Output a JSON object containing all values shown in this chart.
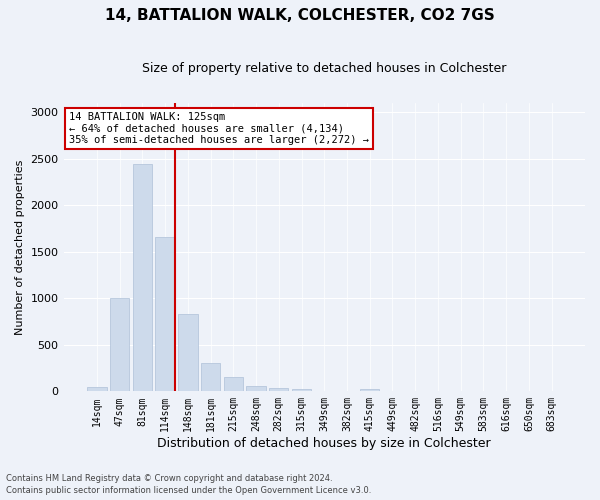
{
  "title1": "14, BATTALION WALK, COLCHESTER, CO2 7GS",
  "title2": "Size of property relative to detached houses in Colchester",
  "xlabel": "Distribution of detached houses by size in Colchester",
  "ylabel": "Number of detached properties",
  "footer1": "Contains HM Land Registry data © Crown copyright and database right 2024.",
  "footer2": "Contains public sector information licensed under the Open Government Licence v3.0.",
  "categories": [
    "14sqm",
    "47sqm",
    "81sqm",
    "114sqm",
    "148sqm",
    "181sqm",
    "215sqm",
    "248sqm",
    "282sqm",
    "315sqm",
    "349sqm",
    "382sqm",
    "415sqm",
    "449sqm",
    "482sqm",
    "516sqm",
    "549sqm",
    "583sqm",
    "616sqm",
    "650sqm",
    "683sqm"
  ],
  "values": [
    50,
    1000,
    2450,
    1660,
    830,
    300,
    150,
    55,
    40,
    30,
    0,
    0,
    25,
    0,
    0,
    0,
    0,
    0,
    0,
    0,
    0
  ],
  "bar_color": "#cddaeb",
  "bar_edge_color": "#aec0d8",
  "highlight_index": 3,
  "highlight_color": "#cc0000",
  "ylim": [
    0,
    3100
  ],
  "yticks": [
    0,
    500,
    1000,
    1500,
    2000,
    2500,
    3000
  ],
  "annotation_text": "14 BATTALION WALK: 125sqm\n← 64% of detached houses are smaller (4,134)\n35% of semi-detached houses are larger (2,272) →",
  "annotation_box_color": "#ffffff",
  "annotation_box_edge": "#cc0000",
  "bg_color": "#eef2f9"
}
